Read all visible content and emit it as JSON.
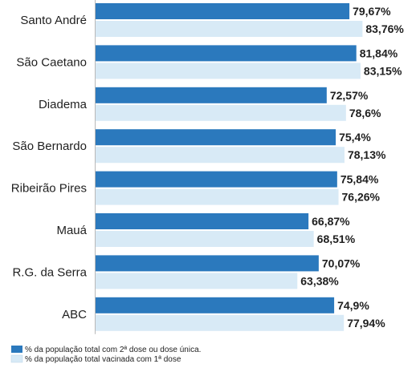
{
  "chart_data": {
    "type": "bar",
    "orientation": "horizontal",
    "categories": [
      "Santo André",
      "São Caetano",
      "Diadema",
      "São Bernardo",
      "Ribeirão Pires",
      "Mauá",
      "R.G. da Serra",
      "ABC"
    ],
    "series": [
      {
        "name": "% da população total com 2ª dose ou dose única.",
        "color": "#2b79bd",
        "values": [
          79.67,
          81.84,
          72.57,
          75.4,
          75.84,
          66.87,
          70.07,
          74.9
        ],
        "labels": [
          "79,67%",
          "81,84%",
          "72,57%",
          "75,4%",
          "75,84%",
          "66,87%",
          "70,07%",
          "74,9%"
        ]
      },
      {
        "name": "% da população total vacinada com 1ª dose",
        "color": "#d8eaf6",
        "values": [
          83.76,
          83.15,
          78.6,
          78.13,
          76.26,
          68.51,
          63.38,
          77.94
        ],
        "labels": [
          "83,76%",
          "83,15%",
          "78,6%",
          "78,13%",
          "76,26%",
          "68,51%",
          "63,38%",
          "77,94%"
        ]
      }
    ],
    "xlim": [
      0,
      100
    ],
    "grid": false,
    "legend_position": "bottom-left",
    "axis_color": "#b8b8b8"
  }
}
